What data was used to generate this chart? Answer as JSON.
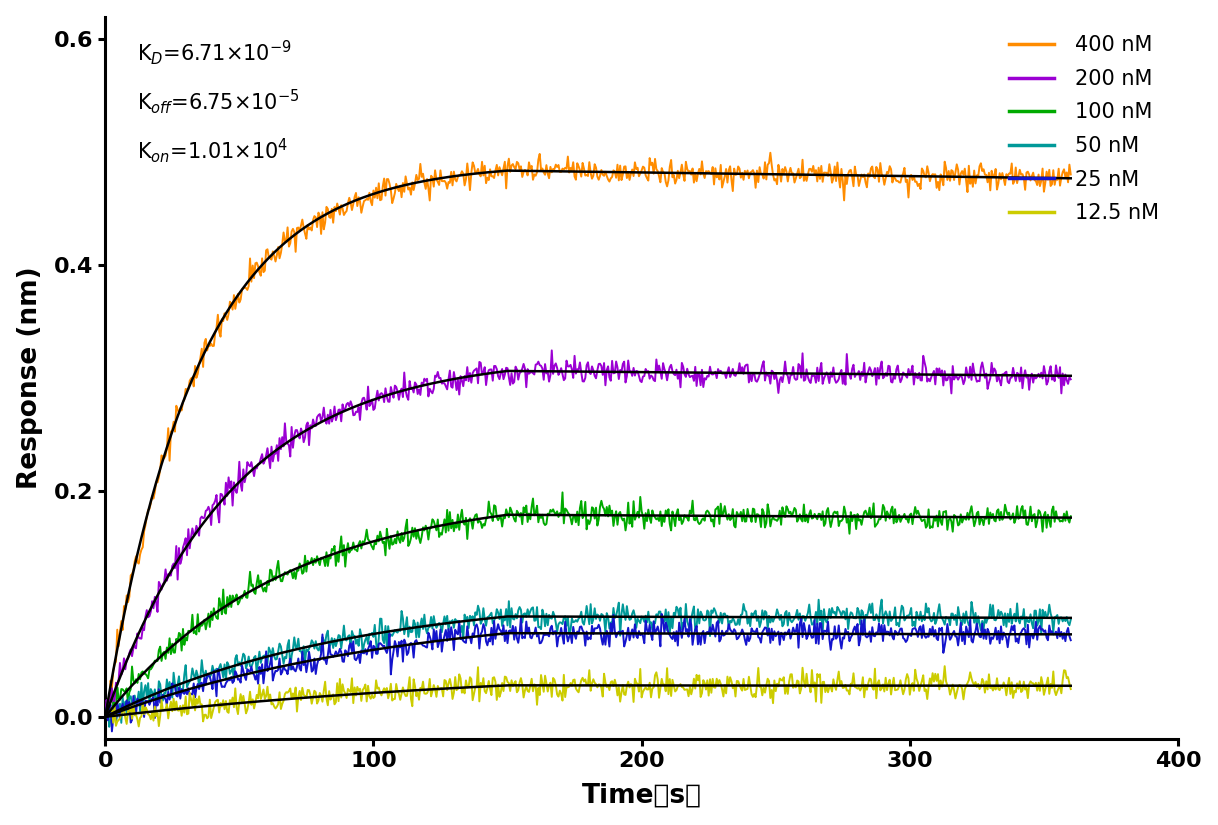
{
  "ylabel": "Response (nm)",
  "xlim": [
    0,
    400
  ],
  "ylim": [
    -0.02,
    0.62
  ],
  "xticks": [
    0,
    100,
    200,
    300,
    400
  ],
  "yticks": [
    0.0,
    0.2,
    0.4,
    0.6
  ],
  "annotation_lines": [
    "K$_{D}$=6.71×10$^{-9}$",
    "K$_{off}$=6.75×10$^{-5}$",
    "K$_{on}$=1.01×10$^{4}$"
  ],
  "series": [
    {
      "label": "400 nM",
      "color": "#FF8C00",
      "plateau": 0.49,
      "k_obs": 0.029,
      "t_assoc": 150
    },
    {
      "label": "200 nM",
      "color": "#9B00D3",
      "plateau": 0.32,
      "k_obs": 0.021,
      "t_assoc": 150
    },
    {
      "label": "100 nM",
      "color": "#00AA00",
      "plateau": 0.2,
      "k_obs": 0.015,
      "t_assoc": 150
    },
    {
      "label": "50 nM",
      "color": "#009999",
      "plateau": 0.11,
      "k_obs": 0.011,
      "t_assoc": 150
    },
    {
      "label": "25 nM",
      "color": "#1414CC",
      "plateau": 0.1,
      "k_obs": 0.009,
      "t_assoc": 150
    },
    {
      "label": "12.5 nM",
      "color": "#CCCC00",
      "plateau": 0.047,
      "k_obs": 0.006,
      "t_assoc": 150
    }
  ],
  "fit_color": "#000000",
  "noise_amplitude": 0.006,
  "background_color": "#ffffff",
  "legend_fontsize": 15,
  "tick_fontsize": 16,
  "label_fontsize": 19,
  "annotation_fontsize": 15,
  "spine_linewidth": 2.2
}
